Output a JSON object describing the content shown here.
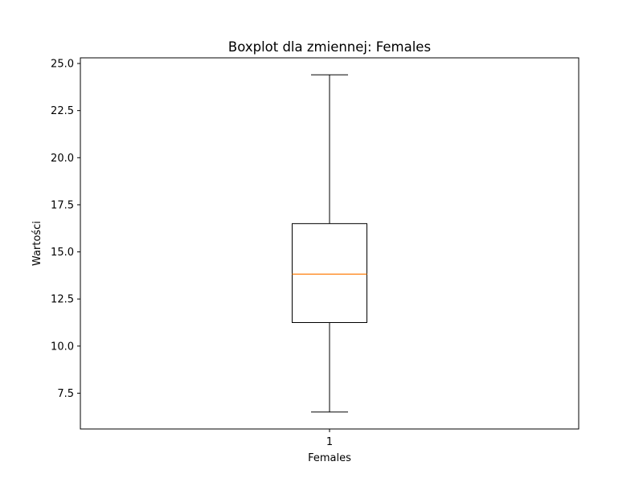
{
  "chart_data": {
    "type": "boxplot",
    "title": "Boxplot dla zmiennej: Females",
    "xlabel": "Females",
    "ylabel": "Wartości",
    "categories": [
      "1"
    ],
    "boxes": [
      {
        "category": "1",
        "whisker_low": 6.5,
        "q1": 11.25,
        "median": 13.82,
        "q3": 16.5,
        "whisker_high": 24.4
      }
    ],
    "ylim": [
      5.6,
      25.3
    ],
    "yticks": [
      7.5,
      10.0,
      12.5,
      15.0,
      17.5,
      20.0,
      22.5,
      25.0
    ],
    "ytick_labels": [
      "7.5",
      "10.0",
      "12.5",
      "15.0",
      "17.5",
      "20.0",
      "22.5",
      "25.0"
    ],
    "grid": false,
    "colors": {
      "box": "#000000",
      "median": "#ff7f0e",
      "whisker": "#000000"
    }
  }
}
